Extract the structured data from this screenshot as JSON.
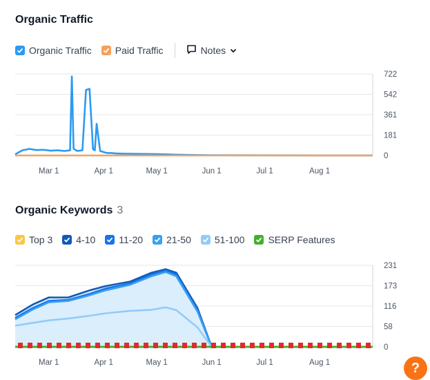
{
  "traffic": {
    "title": "Organic Traffic",
    "legend": [
      {
        "label": "Organic Traffic",
        "color": "#2b9af3"
      },
      {
        "label": "Paid Traffic",
        "color": "#f6a05a"
      }
    ],
    "notes_label": "Notes"
  },
  "keywords": {
    "title": "Organic Keywords",
    "count": "3",
    "legend": [
      {
        "label": "Top 3",
        "color": "#fcc741"
      },
      {
        "label": "4-10",
        "color": "#0f5ab4"
      },
      {
        "label": "11-20",
        "color": "#1a73e8"
      },
      {
        "label": "21-50",
        "color": "#3aa0f0"
      },
      {
        "label": "51-100",
        "color": "#93cbf8"
      },
      {
        "label": "SERP Features",
        "color": "#43b02a"
      }
    ]
  },
  "help": {
    "label": "?"
  },
  "chart_data": [
    {
      "type": "line",
      "title": "Organic Traffic",
      "x_tick_labels": [
        "Mar 1",
        "Apr 1",
        "May 1",
        "Jun 1",
        "Jul 1",
        "Aug 1"
      ],
      "y_tick_labels": [
        "722",
        "542",
        "361",
        "181",
        "0"
      ],
      "ylim": [
        0,
        722
      ],
      "grid": true,
      "series": [
        {
          "name": "Organic Traffic",
          "color": "#2b9af3",
          "x": [
            "2023-02-10",
            "2023-02-14",
            "2023-02-18",
            "2023-02-22",
            "2023-02-26",
            "2023-03-02",
            "2023-03-06",
            "2023-03-10",
            "2023-03-13",
            "2023-03-14",
            "2023-03-15",
            "2023-03-17",
            "2023-03-20",
            "2023-03-22",
            "2023-03-24",
            "2023-03-26",
            "2023-03-27",
            "2023-03-28",
            "2023-03-30",
            "2023-04-01",
            "2023-04-02",
            "2023-04-03",
            "2023-04-05",
            "2023-04-08",
            "2023-04-12",
            "2023-04-20",
            "2023-05-01",
            "2023-05-10",
            "2023-05-20",
            "2023-06-01",
            "2023-06-30",
            "2023-07-31",
            "2023-08-31"
          ],
          "values": [
            10,
            45,
            58,
            48,
            50,
            42,
            45,
            40,
            45,
            700,
            60,
            40,
            45,
            580,
            590,
            55,
            45,
            280,
            40,
            30,
            25,
            22,
            22,
            18,
            16,
            14,
            12,
            8,
            4,
            2,
            1,
            0,
            0
          ]
        },
        {
          "name": "Paid Traffic",
          "color": "#f6a05a",
          "x": [
            "2023-02-10",
            "2023-08-31"
          ],
          "values": [
            0,
            0
          ]
        }
      ]
    },
    {
      "type": "area",
      "title": "Organic Keywords",
      "x_tick_labels": [
        "Mar 1",
        "Apr 1",
        "May 1",
        "Jun 1",
        "Jul 1",
        "Aug 1"
      ],
      "y_tick_labels": [
        "231",
        "173",
        "116",
        "58",
        "0"
      ],
      "ylim": [
        0,
        231
      ],
      "grid": true,
      "series": [
        {
          "name": "4-10",
          "color": "#0f5ab4",
          "x": [
            "2023-02-10",
            "2023-02-20",
            "2023-03-01",
            "2023-03-12",
            "2023-03-24",
            "2023-04-02",
            "2023-04-16",
            "2023-04-28",
            "2023-05-06",
            "2023-05-12",
            "2023-05-24",
            "2023-06-01"
          ],
          "values": [
            90,
            120,
            140,
            140,
            160,
            172,
            185,
            210,
            220,
            210,
            110,
            0
          ]
        },
        {
          "name": "11-20",
          "color": "#1a73e8",
          "x": [
            "2023-02-10",
            "2023-02-20",
            "2023-03-01",
            "2023-03-12",
            "2023-03-24",
            "2023-04-02",
            "2023-04-16",
            "2023-04-28",
            "2023-05-06",
            "2023-05-12",
            "2023-05-24",
            "2023-06-01"
          ],
          "values": [
            82,
            110,
            130,
            133,
            150,
            165,
            180,
            205,
            217,
            205,
            105,
            0
          ]
        },
        {
          "name": "21-50",
          "color": "#3aa0f0",
          "x": [
            "2023-02-10",
            "2023-02-20",
            "2023-03-01",
            "2023-03-12",
            "2023-03-24",
            "2023-04-02",
            "2023-04-16",
            "2023-04-28",
            "2023-05-06",
            "2023-05-12",
            "2023-05-24",
            "2023-06-01"
          ],
          "values": [
            78,
            106,
            126,
            130,
            146,
            160,
            176,
            200,
            212,
            200,
            100,
            0
          ]
        },
        {
          "name": "51-100",
          "color": "#93cbf8",
          "x": [
            "2023-02-10",
            "2023-02-20",
            "2023-03-01",
            "2023-03-12",
            "2023-03-24",
            "2023-04-02",
            "2023-04-16",
            "2023-04-28",
            "2023-05-06",
            "2023-05-12",
            "2023-05-24",
            "2023-06-01"
          ],
          "values": [
            60,
            68,
            75,
            80,
            88,
            95,
            102,
            105,
            112,
            104,
            55,
            0
          ]
        }
      ]
    }
  ]
}
